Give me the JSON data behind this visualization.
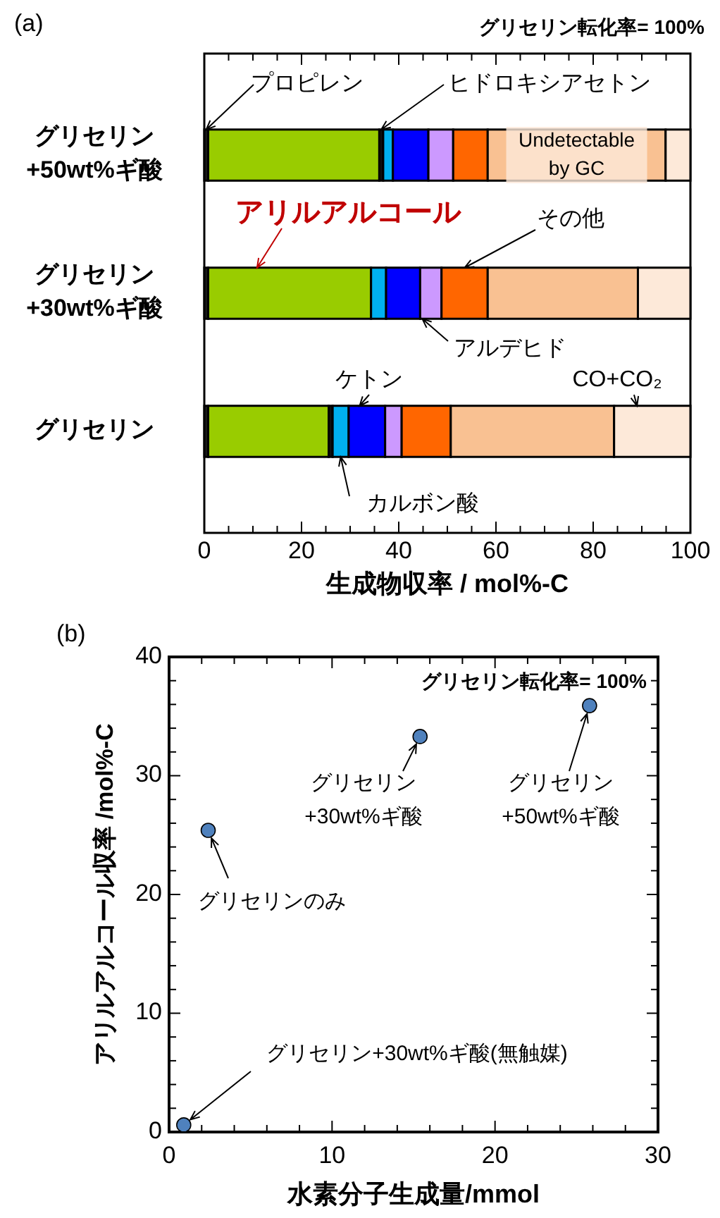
{
  "chart_data": [
    {
      "type": "bar",
      "title": "(a)",
      "orientation": "horizontal",
      "stacked": true,
      "categories": [
        "グリセリン\n+50wt%ギ酸",
        "グリセリン\n+30wt%ギ酸",
        "グリセリン"
      ],
      "series": [
        {
          "name": "プロピレン",
          "color": "#1a1a1a",
          "values": [
            0.8,
            0.8,
            0.8
          ]
        },
        {
          "name": "アリルアルコール",
          "color": "#99cc00",
          "values": [
            35.2,
            33.5,
            24.8
          ]
        },
        {
          "name": "ヒドロキシアセトン",
          "color": "#111111",
          "values": [
            0.8,
            null,
            0.8
          ]
        },
        {
          "name": "カルボン酸",
          "color": "#00b0f0",
          "values": [
            2.0,
            3.1,
            3.3
          ]
        },
        {
          "name": "ケトン",
          "color": "#0000ff",
          "values": [
            7.3,
            7.0,
            7.5
          ]
        },
        {
          "name": "アルデヒド",
          "color": "#cc99ff",
          "values": [
            5.1,
            4.4,
            3.4
          ]
        },
        {
          "name": "その他",
          "color": "#ff6600",
          "values": [
            7.1,
            9.5,
            10.1
          ]
        },
        {
          "name": "Undetectable\nby GC",
          "color": "#f9c192",
          "values": [
            36.6,
            30.9,
            33.6
          ]
        },
        {
          "name": "CO+CO₂",
          "color": "#fde9d9",
          "values": [
            5.1,
            10.8,
            15.7
          ]
        }
      ],
      "xlim": [
        0,
        100
      ],
      "xticks": [
        0,
        {
          "value": 5,
          "label": null
        },
        {
          "value": 10,
          "label": null
        },
        {
          "value": 15,
          "label": null
        },
        20,
        {
          "value": 25,
          "label": null
        },
        {
          "value": 30,
          "label": null
        },
        {
          "value": 35,
          "label": null
        },
        40,
        {
          "value": 45,
          "label": null
        },
        {
          "value": 50,
          "label": null
        },
        {
          "value": 55,
          "label": null
        },
        60,
        {
          "value": 65,
          "label": null
        },
        {
          "value": 70,
          "label": null
        },
        {
          "value": 75,
          "label": null
        },
        80,
        {
          "value": 85,
          "label": null
        },
        {
          "value": 90,
          "label": null
        },
        {
          "value": 95,
          "label": null
        },
        100
      ],
      "xlabel": "生成物収率 / mol%-C",
      "legend": "top",
      "annotations": [
        "グリセリン転化率= 100%"
      ]
    },
    {
      "type": "scatter",
      "title": "(b)",
      "marker": "circle",
      "x": [
        0.9,
        2.4,
        15.4,
        25.8
      ],
      "series": [
        {
          "color": "#4f81bd",
          "values": [
            0.6,
            25.4,
            33.3,
            35.9
          ]
        }
      ],
      "xlim": [
        0,
        30
      ],
      "ylim": [
        0,
        40
      ],
      "xticks": [
        0,
        {
          "value": 2,
          "label": null
        },
        {
          "value": 4,
          "label": null
        },
        {
          "value": 6,
          "label": null
        },
        {
          "value": 8,
          "label": null
        },
        10,
        {
          "value": 12,
          "label": null
        },
        {
          "value": 14,
          "label": null
        },
        {
          "value": 16,
          "label": null
        },
        {
          "value": 18,
          "label": null
        },
        20,
        {
          "value": 22,
          "label": null
        },
        {
          "value": 24,
          "label": null
        },
        {
          "value": 26,
          "label": null
        },
        {
          "value": 28,
          "label": null
        },
        30
      ],
      "yticks": [
        0,
        {
          "value": 2,
          "label": null
        },
        {
          "value": 4,
          "label": null
        },
        {
          "value": 6,
          "label": null
        },
        {
          "value": 8,
          "label": null
        },
        10,
        {
          "value": 12,
          "label": null
        },
        {
          "value": 14,
          "label": null
        },
        {
          "value": 16,
          "label": null
        },
        {
          "value": 18,
          "label": null
        },
        20,
        {
          "value": 22,
          "label": null
        },
        {
          "value": 24,
          "label": null
        },
        {
          "value": 26,
          "label": null
        },
        {
          "value": 28,
          "label": null
        },
        30,
        {
          "value": 32,
          "label": null
        },
        {
          "value": 34,
          "label": null
        },
        {
          "value": 36,
          "label": null
        },
        {
          "value": 38,
          "label": null
        },
        40
      ],
      "xlabel": "水素分子生成量/mmol",
      "ylabel": "アリルアルコール収率 /mol%-C",
      "annotations": [
        "グリセリン転化率= 100%",
        {
          "text": "グリセリン+30wt%ギ酸(無触媒)",
          "x": 0.9,
          "y": 0.6
        },
        {
          "text": "グリセリンのみ",
          "x": 2.4,
          "y": 25.4
        },
        {
          "text": "グリセリン\n+30wt%ギ酸",
          "x": 15.4,
          "y": 33.3
        },
        {
          "text": "グリセリン\n+50wt%ギ酸",
          "x": 25.8,
          "y": 35.9
        }
      ]
    }
  ]
}
